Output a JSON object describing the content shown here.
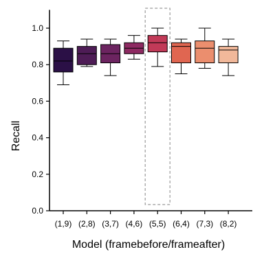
{
  "chart_data": {
    "type": "box",
    "title": "",
    "xlabel": "Model (framebefore/frameafter)",
    "ylabel": "Recall",
    "ylim": [
      0.0,
      1.1
    ],
    "yticks": [
      "0.0",
      "0.2",
      "0.4",
      "0.6",
      "0.8",
      "1.0"
    ],
    "categories": [
      "(1,9)",
      "(2,8)",
      "(3,7)",
      "(4,6)",
      "(5,5)",
      "(6,4)",
      "(7,3)",
      "(8,2)"
    ],
    "boxes": [
      {
        "category": "(1,9)",
        "min": 0.69,
        "q1": 0.76,
        "median": 0.82,
        "q3": 0.89,
        "max": 0.93,
        "color": "#2b1046"
      },
      {
        "category": "(2,8)",
        "min": 0.79,
        "q1": 0.8,
        "median": 0.86,
        "q3": 0.9,
        "max": 0.94,
        "color": "#4e1c56"
      },
      {
        "category": "(3,7)",
        "min": 0.74,
        "q1": 0.81,
        "median": 0.86,
        "q3": 0.91,
        "max": 0.94,
        "color": "#6c2460"
      },
      {
        "category": "(4,6)",
        "min": 0.83,
        "q1": 0.86,
        "median": 0.89,
        "q3": 0.92,
        "max": 0.96,
        "color": "#8e2a62"
      },
      {
        "category": "(5,5)",
        "min": 0.79,
        "q1": 0.87,
        "median": 0.92,
        "q3": 0.96,
        "max": 1.0,
        "color": "#c23a58"
      },
      {
        "category": "(6,4)",
        "min": 0.75,
        "q1": 0.81,
        "median": 0.9,
        "q3": 0.92,
        "max": 0.94,
        "color": "#e06651"
      },
      {
        "category": "(7,3)",
        "min": 0.78,
        "q1": 0.81,
        "median": 0.89,
        "q3": 0.93,
        "max": 1.0,
        "color": "#eb8e6e"
      },
      {
        "category": "(8,2)",
        "min": 0.74,
        "q1": 0.81,
        "median": 0.88,
        "q3": 0.9,
        "max": 0.94,
        "color": "#f1b89a"
      }
    ],
    "highlight": {
      "category": "(5,5)",
      "style": "dashed-box",
      "color": "#999999"
    },
    "grid": false,
    "legend": "none"
  }
}
